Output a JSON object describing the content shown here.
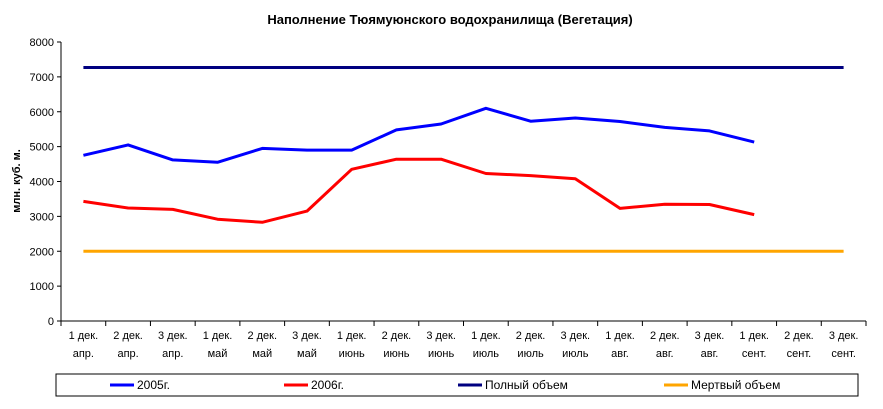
{
  "chart_data": {
    "type": "line",
    "title": "Наполнение Тюямуюнского водохранилища (Вегетация)",
    "xlabel": "",
    "ylabel": "млн. куб. м.",
    "ylim": [
      0,
      8000
    ],
    "yticks": [
      "0",
      "1000",
      "2000",
      "3000",
      "4000",
      "5000",
      "6000",
      "7000",
      "8000"
    ],
    "categories": [
      [
        "1 дек.",
        "апр."
      ],
      [
        "2 дек.",
        "апр."
      ],
      [
        "3 дек.",
        "апр."
      ],
      [
        "1 дек.",
        "май"
      ],
      [
        "2 дек.",
        "май"
      ],
      [
        "3 дек.",
        "май"
      ],
      [
        "1 дек.",
        "июнь"
      ],
      [
        "2 дек.",
        "июнь"
      ],
      [
        "3 дек.",
        "июнь"
      ],
      [
        "1 дек.",
        "июль"
      ],
      [
        "2 дек.",
        "июль"
      ],
      [
        "3 дек.",
        "июль"
      ],
      [
        "1 дек.",
        "авг."
      ],
      [
        "2 дек.",
        "авг."
      ],
      [
        "3 дек.",
        "авг."
      ],
      [
        "1 дек.",
        "сент."
      ],
      [
        "2 дек.",
        "сент."
      ],
      [
        "3 дек.",
        "сент."
      ]
    ],
    "series": [
      {
        "name": "2005г.",
        "color": "#0000ff",
        "values": [
          4750,
          5050,
          4620,
          4550,
          4950,
          4900,
          4900,
          5480,
          5650,
          6100,
          5730,
          5820,
          5720,
          5550,
          5450,
          5130,
          null,
          null
        ]
      },
      {
        "name": "2006г.",
        "color": "#ff0000",
        "values": [
          3430,
          3240,
          3200,
          2920,
          2830,
          3150,
          4350,
          4640,
          4640,
          4230,
          4170,
          4080,
          3230,
          3350,
          3340,
          3050,
          null,
          null
        ]
      },
      {
        "name": "Полный объем",
        "color": "#000080",
        "values": [
          7270,
          7270,
          7270,
          7270,
          7270,
          7270,
          7270,
          7270,
          7270,
          7270,
          7270,
          7270,
          7270,
          7270,
          7270,
          7270,
          7270,
          7270
        ]
      },
      {
        "name": "Мертвый объем",
        "color": "#ffa500",
        "values": [
          2000,
          2000,
          2000,
          2000,
          2000,
          2000,
          2000,
          2000,
          2000,
          2000,
          2000,
          2000,
          2000,
          2000,
          2000,
          2000,
          2000,
          2000
        ]
      }
    ],
    "grid": false,
    "legend": "bottom"
  }
}
